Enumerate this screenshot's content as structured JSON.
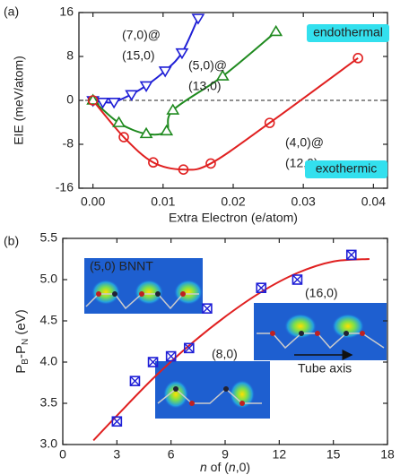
{
  "chart_data": [
    {
      "type": "line",
      "panel_label": "(a)",
      "x_label": "Extra Electron (e/atom)",
      "y_label": "EIE (meV/atom)",
      "xlim": [
        -0.002,
        0.042
      ],
      "xticks": [
        {
          "value": 0,
          "label": "0.00"
        },
        {
          "value": 0.01,
          "label": "0.01"
        },
        {
          "value": 0.02,
          "label": "0.02"
        },
        {
          "value": 0.03,
          "label": "0.03"
        },
        {
          "value": 0.04,
          "label": "0.04"
        }
      ],
      "ylim": [
        -16,
        16
      ],
      "yticks": [
        -16,
        -8,
        0,
        8,
        16
      ],
      "zero_line": true,
      "series": [
        {
          "color": "#1f1fd6",
          "marker": "triangle-down",
          "line": true,
          "x": [
            0,
            0.0014,
            0.003,
            0.0055,
            0.0076,
            0.0103,
            0.0127,
            0.015
          ],
          "values": [
            0,
            -0.3,
            -0.3,
            1.1,
            2.7,
            5.4,
            8.7,
            15
          ]
        },
        {
          "color": "#1f8a1f",
          "marker": "triangle-up",
          "line": true,
          "x": [
            0,
            0.0037,
            0.0076,
            0.0105,
            0.0114,
            0.0185,
            0.0261
          ],
          "values": [
            0,
            -4.1,
            -6.1,
            -5.6,
            -1.8,
            4.4,
            12.5
          ]
        },
        {
          "color": "#e02020",
          "marker": "circle",
          "line": true,
          "x": [
            0,
            0.0044,
            0.0086,
            0.0129,
            0.0168,
            0.0252,
            0.0378
          ],
          "values": [
            0,
            -6.7,
            -11.3,
            -12.6,
            -11.5,
            -4.1,
            7.7
          ]
        }
      ],
      "annotations": [
        {
          "text": "(7,0)@",
          "color": "#1f1fd6"
        },
        {
          "text": "(15,0)",
          "color": "#1f1fd6"
        },
        {
          "text": "(5,0)@",
          "color": "#1f8a1f"
        },
        {
          "text": "(13,0)",
          "color": "#1f8a1f"
        },
        {
          "text": "(4,0)@",
          "color": "#e02020"
        },
        {
          "text": "(12,0)",
          "color": "#e02020"
        },
        {
          "text": "endothermal",
          "color": "#222222",
          "box": "#33e0ee"
        },
        {
          "text": "exothermic",
          "color": "#222222",
          "box": "#33e0ee"
        }
      ]
    },
    {
      "type": "scatter",
      "panel_label": "(b)",
      "x_label": [
        "n",
        " of (",
        "n",
        ",0)"
      ],
      "y_label": [
        "P",
        "B",
        "-P",
        "N",
        " (eV)"
      ],
      "xlim": [
        0,
        18
      ],
      "xticks": [
        0,
        3,
        6,
        9,
        12,
        15,
        18
      ],
      "ylim": [
        3,
        5.5
      ],
      "yticks": [
        {
          "value": 3,
          "label": "3.0"
        },
        {
          "value": 3.5,
          "label": "3.5"
        },
        {
          "value": 4,
          "label": "4.0"
        },
        {
          "value": 4.5,
          "label": "4.5"
        },
        {
          "value": 5,
          "label": "5.0"
        },
        {
          "value": 5.5,
          "label": "5.5"
        }
      ],
      "zero_line": false,
      "series": [
        {
          "color": "#e02020",
          "marker": "none",
          "line": true,
          "x": [
            1.7,
            3,
            5,
            7,
            9,
            11,
            13,
            15,
            17
          ],
          "values": [
            3.05,
            3.35,
            3.8,
            4.2,
            4.55,
            4.85,
            5.08,
            5.22,
            5.25
          ]
        },
        {
          "color": "#1f1fd6",
          "marker": "crossed-square",
          "line": false,
          "x": [
            3,
            4,
            5,
            6,
            7,
            8,
            11,
            13,
            16
          ],
          "values": [
            3.28,
            3.77,
            4.0,
            4.07,
            4.17,
            4.65,
            4.9,
            5.0,
            5.3
          ]
        }
      ],
      "annotations": [
        {
          "text": "(5,0) BNNT",
          "color": "#111111"
        },
        {
          "text": "(16,0)",
          "color": "#111111"
        },
        {
          "text": "(8,0)",
          "color": "#111111"
        },
        {
          "text": "Tube axis",
          "color": "#111111"
        }
      ]
    }
  ]
}
